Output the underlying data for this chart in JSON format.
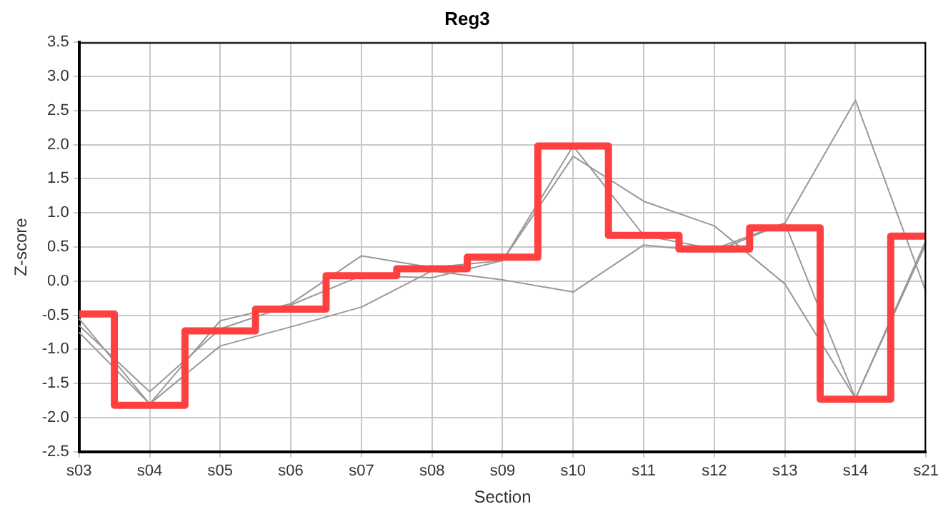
{
  "chart_data": {
    "type": "line",
    "title": "Reg3",
    "xlabel": "Section",
    "ylabel": "Z-score",
    "categories": [
      "s03",
      "s04",
      "s05",
      "s06",
      "s07",
      "s08",
      "s09",
      "s10",
      "s11",
      "s12",
      "s13",
      "s14",
      "s21"
    ],
    "ylim": [
      -2.5,
      3.5
    ],
    "yticks": [
      {
        "value": -2.5,
        "label": "-2.5"
      },
      {
        "value": -2,
        "label": "-2.0"
      },
      {
        "value": -1.5,
        "label": "-1.5"
      },
      {
        "value": -1,
        "label": "-1.0"
      },
      {
        "value": -0.5,
        "label": "-0.5"
      },
      {
        "value": 0,
        "label": "0.0"
      },
      {
        "value": 0.5,
        "label": "0.5"
      },
      {
        "value": 1,
        "label": "1.0"
      },
      {
        "value": 1.5,
        "label": "1.5"
      },
      {
        "value": 2,
        "label": "2.0"
      },
      {
        "value": 2.5,
        "label": "2.5"
      },
      {
        "value": 3,
        "label": "3.0"
      },
      {
        "value": 3.5,
        "label": "3.5"
      }
    ],
    "grid": true,
    "legend": false,
    "marker": "none",
    "line_style": "solid",
    "series": [
      {
        "color": "#999999",
        "values": [
          -0.55,
          -1.8,
          -0.58,
          -0.33,
          0.37,
          0.2,
          0.3,
          1.98,
          0.67,
          0.47,
          0.85,
          2.65,
          -0.16
        ]
      },
      {
        "color": "#999999",
        "values": [
          -0.65,
          -1.62,
          -0.7,
          -0.35,
          0.08,
          0.05,
          0.3,
          1.83,
          1.17,
          0.81,
          -0.04,
          -1.72,
          0.6
        ]
      },
      {
        "color": "#999999",
        "values": [
          -0.75,
          -1.8,
          -0.95,
          -0.67,
          -0.38,
          0.15,
          0.02,
          -0.16,
          0.53,
          0.43,
          0.85,
          -1.72,
          0.55
        ]
      },
      {
        "type": "step",
        "color": "#ff4040",
        "values": [
          -0.48,
          -1.82,
          -0.73,
          -0.41,
          0.08,
          0.18,
          0.35,
          1.98,
          0.67,
          0.47,
          0.78,
          -1.73,
          0.66
        ]
      }
    ]
  }
}
